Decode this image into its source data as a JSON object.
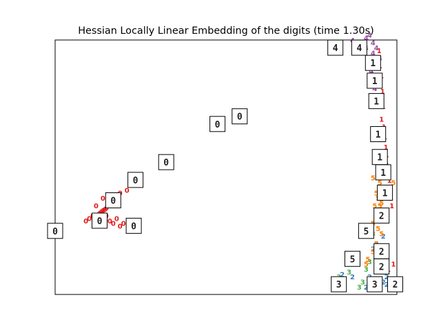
{
  "chart_data": {
    "type": "scatter",
    "title": "Hessian Locally Linear Embedding of the digits (time 1.30s)",
    "xlabel": "",
    "ylabel": "",
    "xlim": [
      0,
      1
    ],
    "ylim": [
      0,
      1
    ],
    "axis_ticks": "none",
    "colors": {
      "0": "#e41a1c",
      "1": "#e41a1c",
      "2": "#377eb8",
      "3": "#4daf4a",
      "4": "#984ea3",
      "5": "#ff7f00"
    },
    "points": [
      {
        "label": "0",
        "x": 0.1,
        "y": 0.3
      },
      {
        "label": "0",
        "x": 0.11,
        "y": 0.31
      },
      {
        "label": "0",
        "x": 0.12,
        "y": 0.29
      },
      {
        "label": "0",
        "x": 0.13,
        "y": 0.28
      },
      {
        "label": "0",
        "x": 0.13,
        "y": 0.32
      },
      {
        "label": "0",
        "x": 0.14,
        "y": 0.33
      },
      {
        "label": "0",
        "x": 0.14,
        "y": 0.3
      },
      {
        "label": "0",
        "x": 0.15,
        "y": 0.34
      },
      {
        "label": "0",
        "x": 0.15,
        "y": 0.31
      },
      {
        "label": "0",
        "x": 0.16,
        "y": 0.29
      },
      {
        "label": "0",
        "x": 0.16,
        "y": 0.36
      },
      {
        "label": "0",
        "x": 0.17,
        "y": 0.37
      },
      {
        "label": "0",
        "x": 0.17,
        "y": 0.28
      },
      {
        "label": "0",
        "x": 0.18,
        "y": 0.3
      },
      {
        "label": "0",
        "x": 0.19,
        "y": 0.27
      },
      {
        "label": "0",
        "x": 0.2,
        "y": 0.28
      },
      {
        "label": "0",
        "x": 0.19,
        "y": 0.4
      },
      {
        "label": "0",
        "x": 0.21,
        "y": 0.41
      },
      {
        "label": "0",
        "x": 0.22,
        "y": 0.29
      },
      {
        "label": "0",
        "x": 0.09,
        "y": 0.29
      },
      {
        "label": "0",
        "x": 0.12,
        "y": 0.35
      },
      {
        "label": "0",
        "x": 0.14,
        "y": 0.38
      },
      {
        "label": "0",
        "x": 0.145,
        "y": 0.335
      },
      {
        "label": "0",
        "x": 0.135,
        "y": 0.325
      },
      {
        "label": "1",
        "x": 0.948,
        "y": 0.96
      },
      {
        "label": "1",
        "x": 0.95,
        "y": 0.9
      },
      {
        "label": "1",
        "x": 0.955,
        "y": 0.86
      },
      {
        "label": "1",
        "x": 0.958,
        "y": 0.8
      },
      {
        "label": "1",
        "x": 0.96,
        "y": 0.74
      },
      {
        "label": "1",
        "x": 0.955,
        "y": 0.69
      },
      {
        "label": "1",
        "x": 0.962,
        "y": 0.66
      },
      {
        "label": "1",
        "x": 0.965,
        "y": 0.62
      },
      {
        "label": "1",
        "x": 0.968,
        "y": 0.58
      },
      {
        "label": "1",
        "x": 0.97,
        "y": 0.55
      },
      {
        "label": "1",
        "x": 0.972,
        "y": 0.51
      },
      {
        "label": "1",
        "x": 0.975,
        "y": 0.48
      },
      {
        "label": "1",
        "x": 0.978,
        "y": 0.45
      },
      {
        "label": "1",
        "x": 0.98,
        "y": 0.41
      },
      {
        "label": "1",
        "x": 0.982,
        "y": 0.38
      },
      {
        "label": "1",
        "x": 0.985,
        "y": 0.35
      },
      {
        "label": "1",
        "x": 0.99,
        "y": 0.12
      },
      {
        "label": "1",
        "x": 0.975,
        "y": 0.1
      },
      {
        "label": "2",
        "x": 0.93,
        "y": 0.18
      },
      {
        "label": "2",
        "x": 0.94,
        "y": 0.2
      },
      {
        "label": "2",
        "x": 0.95,
        "y": 0.15
      },
      {
        "label": "2",
        "x": 0.96,
        "y": 0.09
      },
      {
        "label": "2",
        "x": 0.97,
        "y": 0.07
      },
      {
        "label": "2",
        "x": 0.98,
        "y": 0.06
      },
      {
        "label": "2",
        "x": 0.99,
        "y": 0.05
      },
      {
        "label": "2",
        "x": 0.97,
        "y": 0.04
      },
      {
        "label": "2",
        "x": 0.96,
        "y": 0.05
      },
      {
        "label": "2",
        "x": 0.95,
        "y": 0.06
      },
      {
        "label": "2",
        "x": 0.94,
        "y": 0.04
      },
      {
        "label": "2",
        "x": 0.93,
        "y": 0.03
      },
      {
        "label": "2",
        "x": 0.92,
        "y": 0.07
      },
      {
        "label": "2",
        "x": 0.91,
        "y": 0.03
      },
      {
        "label": "2",
        "x": 0.87,
        "y": 0.07
      },
      {
        "label": "2",
        "x": 0.84,
        "y": 0.08
      },
      {
        "label": "2",
        "x": 0.96,
        "y": 0.23
      },
      {
        "label": "2",
        "x": 0.965,
        "y": 0.13
      },
      {
        "label": "3",
        "x": 0.83,
        "y": 0.07
      },
      {
        "label": "3",
        "x": 0.86,
        "y": 0.09
      },
      {
        "label": "3",
        "x": 0.89,
        "y": 0.03
      },
      {
        "label": "3",
        "x": 0.9,
        "y": 0.05
      },
      {
        "label": "3",
        "x": 0.91,
        "y": 0.1
      },
      {
        "label": "3",
        "x": 0.92,
        "y": 0.13
      },
      {
        "label": "3",
        "x": 0.93,
        "y": 0.24
      },
      {
        "label": "3",
        "x": 0.95,
        "y": 0.02
      },
      {
        "label": "4",
        "x": 0.87,
        "y": 1.0
      },
      {
        "label": "4",
        "x": 0.88,
        "y": 0.99
      },
      {
        "label": "4",
        "x": 0.89,
        "y": 0.98
      },
      {
        "label": "4",
        "x": 0.9,
        "y": 0.99
      },
      {
        "label": "4",
        "x": 0.91,
        "y": 1.01
      },
      {
        "label": "4",
        "x": 0.92,
        "y": 1.02
      },
      {
        "label": "4",
        "x": 0.93,
        "y": 0.99
      },
      {
        "label": "4",
        "x": 0.94,
        "y": 0.97
      },
      {
        "label": "4",
        "x": 0.95,
        "y": 0.93
      },
      {
        "label": "4",
        "x": 0.94,
        "y": 0.89
      },
      {
        "label": "4",
        "x": 0.93,
        "y": 0.95
      },
      {
        "label": "4",
        "x": 0.925,
        "y": 0.88
      },
      {
        "label": "4",
        "x": 0.91,
        "y": 0.97
      },
      {
        "label": "4",
        "x": 0.935,
        "y": 0.81
      },
      {
        "label": "4",
        "x": 0.945,
        "y": 0.83
      },
      {
        "label": "5",
        "x": 0.93,
        "y": 0.46
      },
      {
        "label": "5",
        "x": 0.95,
        "y": 0.44
      },
      {
        "label": "5",
        "x": 0.96,
        "y": 0.42
      },
      {
        "label": "5",
        "x": 0.94,
        "y": 0.4
      },
      {
        "label": "5",
        "x": 0.945,
        "y": 0.38
      },
      {
        "label": "5",
        "x": 0.955,
        "y": 0.36
      },
      {
        "label": "5",
        "x": 0.935,
        "y": 0.35
      },
      {
        "label": "5",
        "x": 0.945,
        "y": 0.33
      },
      {
        "label": "5",
        "x": 0.955,
        "y": 0.31
      },
      {
        "label": "5",
        "x": 0.94,
        "y": 0.3
      },
      {
        "label": "5",
        "x": 0.93,
        "y": 0.28
      },
      {
        "label": "5",
        "x": 0.945,
        "y": 0.26
      },
      {
        "label": "5",
        "x": 0.955,
        "y": 0.24
      },
      {
        "label": "5",
        "x": 0.94,
        "y": 0.2
      },
      {
        "label": "5",
        "x": 0.93,
        "y": 0.17
      },
      {
        "label": "5",
        "x": 0.915,
        "y": 0.14
      },
      {
        "label": "5",
        "x": 0.91,
        "y": 0.12
      },
      {
        "label": "5",
        "x": 0.99,
        "y": 0.44
      },
      {
        "label": "5",
        "x": 0.965,
        "y": 0.41
      },
      {
        "label": "5",
        "x": 0.95,
        "y": 0.35
      }
    ],
    "thumbnails": [
      {
        "digit": "4",
        "x": 0.82,
        "y": 0.97
      },
      {
        "label": "",
        "digit": "4",
        "x": 0.89,
        "y": 0.97
      },
      {
        "digit": "1",
        "x": 0.93,
        "y": 0.91
      },
      {
        "digit": "1",
        "x": 0.935,
        "y": 0.84
      },
      {
        "digit": "1",
        "x": 0.94,
        "y": 0.76
      },
      {
        "digit": "1",
        "x": 0.945,
        "y": 0.63
      },
      {
        "digit": "1",
        "x": 0.95,
        "y": 0.54
      },
      {
        "digit": "1",
        "x": 0.96,
        "y": 0.48
      },
      {
        "digit": "1",
        "x": 0.965,
        "y": 0.4
      },
      {
        "digit": "2",
        "x": 0.955,
        "y": 0.31
      },
      {
        "digit": "5",
        "x": 0.91,
        "y": 0.25
      },
      {
        "digit": "2",
        "x": 0.955,
        "y": 0.17
      },
      {
        "digit": "2",
        "x": 0.955,
        "y": 0.11
      },
      {
        "digit": "5",
        "x": 0.87,
        "y": 0.14
      },
      {
        "digit": "3",
        "x": 0.83,
        "y": 0.04
      },
      {
        "digit": "3",
        "x": 0.935,
        "y": 0.04
      },
      {
        "digit": "2",
        "x": 0.995,
        "y": 0.04
      },
      {
        "digit": "0",
        "x": 0.0,
        "y": 0.25
      },
      {
        "digit": "0",
        "x": 0.13,
        "y": 0.29
      },
      {
        "digit": "0",
        "x": 0.23,
        "y": 0.27
      },
      {
        "digit": "0",
        "x": 0.17,
        "y": 0.37
      },
      {
        "digit": "0",
        "x": 0.235,
        "y": 0.45
      },
      {
        "digit": "0",
        "x": 0.325,
        "y": 0.52
      },
      {
        "digit": "0",
        "x": 0.475,
        "y": 0.67
      },
      {
        "digit": "0",
        "x": 0.54,
        "y": 0.7
      }
    ]
  }
}
